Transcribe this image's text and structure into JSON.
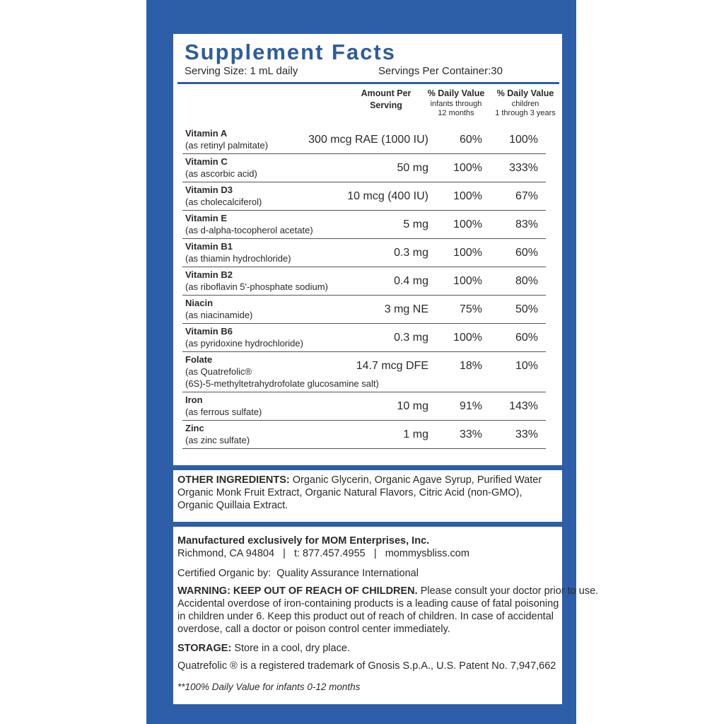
{
  "title": "Supplement Facts",
  "serving_size": "Serving Size: 1 mL daily",
  "servings_per_container": "Servings Per Container:30",
  "columns": {
    "amount": [
      "Amount Per",
      "Serving"
    ],
    "dv_infants": [
      "% Daily Value",
      "infants through",
      "12 months"
    ],
    "dv_children": [
      "% Daily Value",
      "children",
      "1 through 3 years"
    ]
  },
  "rows": [
    {
      "name": "Vitamin A",
      "source": [
        "(as retinyl palmitate)"
      ],
      "amount": "300 mcg RAE (1000 IU)",
      "dv_infants": "60%",
      "dv_children": "100%"
    },
    {
      "name": "Vitamin C",
      "source": [
        "(as ascorbic acid)"
      ],
      "amount": "50 mg",
      "dv_infants": "100%",
      "dv_children": "333%"
    },
    {
      "name": "Vitamin D3",
      "source": [
        "(as cholecalciferol)"
      ],
      "amount": "10 mcg (400 IU)",
      "dv_infants": "100%",
      "dv_children": "67%"
    },
    {
      "name": "Vitamin E",
      "source": [
        "(as d-alpha-tocopherol acetate)"
      ],
      "amount": "5 mg",
      "dv_infants": "100%",
      "dv_children": "83%"
    },
    {
      "name": "Vitamin B1",
      "source": [
        "(as thiamin hydrochloride)"
      ],
      "amount": "0.3 mg",
      "dv_infants": "100%",
      "dv_children": "60%"
    },
    {
      "name": "Vitamin B2",
      "source": [
        "(as riboflavin 5'-phosphate sodium)"
      ],
      "amount": "0.4 mg",
      "dv_infants": "100%",
      "dv_children": "80%"
    },
    {
      "name": "Niacin",
      "source": [
        "(as niacinamide)"
      ],
      "amount": "3 mg NE",
      "dv_infants": "75%",
      "dv_children": "50%"
    },
    {
      "name": "Vitamin B6",
      "source": [
        "(as pyridoxine hydrochloride)"
      ],
      "amount": "0.3 mg",
      "dv_infants": "100%",
      "dv_children": "60%"
    },
    {
      "name": "Folate",
      "source": [
        "(as Quatrefolic®",
        "(6S)-5-methyltetrahydrofolate glucosamine salt)"
      ],
      "amount": "14.7 mcg DFE",
      "dv_infants": "18%",
      "dv_children": "10%"
    },
    {
      "name": "Iron",
      "source": [
        "(as ferrous sulfate)"
      ],
      "amount": "10 mg",
      "dv_infants": "91%",
      "dv_children": "143%"
    },
    {
      "name": "Zinc",
      "source": [
        "(as zinc sulfate)"
      ],
      "amount": "1 mg",
      "dv_infants": "33%",
      "dv_children": "33%"
    }
  ],
  "other_ingredients": {
    "label": "OTHER INGREDIENTS:",
    "lines": [
      "Organic Glycerin, Organic Agave Syrup, Purified Water",
      "Organic Monk Fruit Extract, Organic Natural Flavors, Citric Acid (non-GMO),",
      "Organic Quillaia Extract."
    ]
  },
  "manufacturer": {
    "name": "Manufactured exclusively for MOM Enterprises, Inc.",
    "contact": "Richmond, CA 94804   |   t: 877.457.4955   |   mommysbliss.com"
  },
  "certified": "Certified Organic by:  Quality Assurance International",
  "warning": {
    "label": "WARNING: KEEP OUT OF REACH OF CHILDREN.",
    "lines": [
      "Please consult your doctor prior to use.",
      "Accidental overdose of iron-containing products is a leading cause of fatal poisoning",
      "in children under 6. Keep this product out of reach of children. In case of accidental",
      "overdose, call a doctor or poison control center immediately."
    ]
  },
  "storage": {
    "label": "STORAGE:",
    "text": "Store in a cool, dry place."
  },
  "trademark": "Quatrefolic ® is a registered trademark of Gnosis S.p.A., U.S. Patent No. 7,947,662",
  "footnote": "**100% Daily Value for infants 0-12 months"
}
